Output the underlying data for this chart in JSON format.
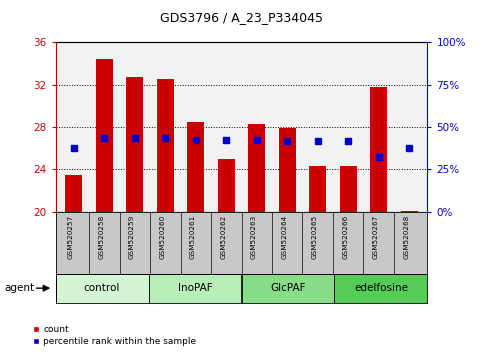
{
  "title": "GDS3796 / A_23_P334045",
  "samples": [
    "GSM520257",
    "GSM520258",
    "GSM520259",
    "GSM520260",
    "GSM520261",
    "GSM520262",
    "GSM520263",
    "GSM520264",
    "GSM520265",
    "GSM520266",
    "GSM520267",
    "GSM520268"
  ],
  "red_values": [
    23.5,
    34.4,
    32.7,
    32.5,
    28.5,
    25.0,
    28.3,
    27.9,
    24.3,
    24.3,
    31.8,
    20.1
  ],
  "blue_values": [
    26.0,
    27.0,
    27.0,
    27.0,
    26.8,
    26.8,
    26.8,
    26.7,
    26.7,
    26.7,
    25.2,
    26.0
  ],
  "ylim_left": [
    20,
    36
  ],
  "ylim_right": [
    0,
    100
  ],
  "yticks_left": [
    20,
    24,
    28,
    32,
    36
  ],
  "yticks_right": [
    0,
    25,
    50,
    75,
    100
  ],
  "ytick_labels_right": [
    "0%",
    "25%",
    "50%",
    "75%",
    "100%"
  ],
  "groups": [
    {
      "label": "control",
      "start": 0,
      "end": 3,
      "color": "#d4f5d4"
    },
    {
      "label": "InoPAF",
      "start": 3,
      "end": 6,
      "color": "#b8eeb8"
    },
    {
      "label": "GlcPAF",
      "start": 6,
      "end": 9,
      "color": "#88dd88"
    },
    {
      "label": "edelfosine",
      "start": 9,
      "end": 12,
      "color": "#55cc55"
    }
  ],
  "bar_color": "#cc0000",
  "dot_color": "#0000cc",
  "bar_width": 0.55,
  "bar_bottom": 20,
  "plot_bg": "#f2f2f2",
  "left_axis_color": "#cc0000",
  "right_axis_color": "#0000cc",
  "agent_label": "agent",
  "legend_count": "count",
  "legend_percentile": "percentile rank within the sample",
  "tick_box_color": "#c8c8c8"
}
